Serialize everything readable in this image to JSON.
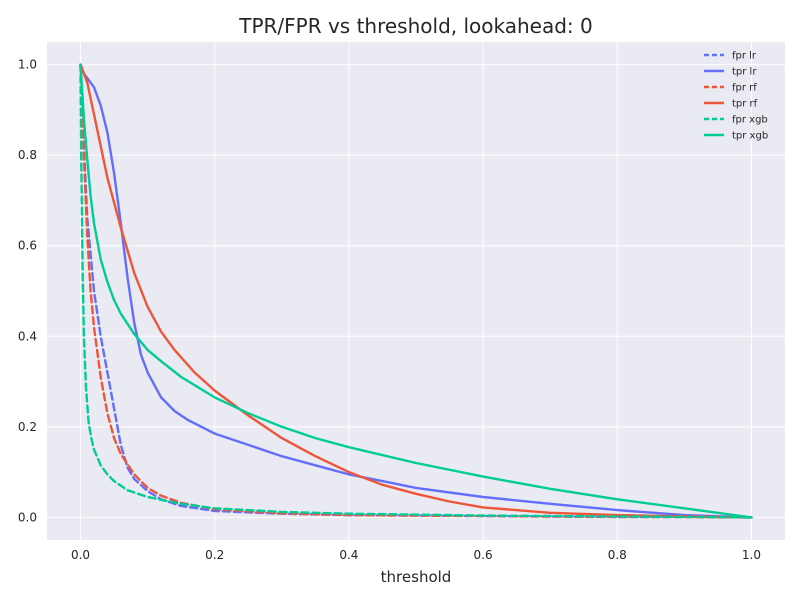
{
  "chart_data": {
    "type": "line",
    "title": "TPR/FPR vs threshold, lookahead: 0",
    "xlabel": "threshold",
    "ylabel": "",
    "xlim": [
      -0.05,
      1.05
    ],
    "ylim": [
      -0.05,
      1.05
    ],
    "grid": true,
    "legend_position": "top-right",
    "xticks": [
      {
        "value": 0.0,
        "label": "0.0"
      },
      {
        "value": 0.2,
        "label": "0.2"
      },
      {
        "value": 0.4,
        "label": "0.4"
      },
      {
        "value": 0.6,
        "label": "0.6"
      },
      {
        "value": 0.8,
        "label": "0.8"
      },
      {
        "value": 1.0,
        "label": "1.0"
      }
    ],
    "yticks": [
      {
        "value": 0.0,
        "label": "0.0"
      },
      {
        "value": 0.2,
        "label": "0.2"
      },
      {
        "value": 0.4,
        "label": "0.4"
      },
      {
        "value": 0.6,
        "label": "0.6"
      },
      {
        "value": 0.8,
        "label": "0.8"
      },
      {
        "value": 1.0,
        "label": "1.0"
      }
    ],
    "series": [
      {
        "name": "fpr lr",
        "color": "#636efa",
        "dash": "dashed",
        "x": [
          0,
          0.005,
          0.01,
          0.02,
          0.03,
          0.04,
          0.05,
          0.06,
          0.07,
          0.08,
          0.1,
          0.12,
          0.15,
          0.2,
          0.3,
          0.4,
          0.5,
          0.6,
          0.7,
          0.8,
          0.9,
          1.0
        ],
        "y": [
          1.0,
          0.82,
          0.66,
          0.5,
          0.4,
          0.32,
          0.24,
          0.16,
          0.11,
          0.085,
          0.058,
          0.04,
          0.025,
          0.014,
          0.008,
          0.005,
          0.004,
          0.003,
          0.002,
          0.001,
          0.001,
          0.0
        ]
      },
      {
        "name": "tpr lr",
        "color": "#636efa",
        "dash": "solid",
        "x": [
          0,
          0.005,
          0.01,
          0.02,
          0.03,
          0.04,
          0.05,
          0.06,
          0.07,
          0.08,
          0.09,
          0.1,
          0.12,
          0.14,
          0.16,
          0.2,
          0.25,
          0.3,
          0.35,
          0.4,
          0.45,
          0.5,
          0.6,
          0.7,
          0.8,
          0.9,
          1.0
        ],
        "y": [
          1.0,
          0.98,
          0.97,
          0.95,
          0.91,
          0.85,
          0.76,
          0.65,
          0.53,
          0.43,
          0.36,
          0.32,
          0.265,
          0.235,
          0.215,
          0.185,
          0.16,
          0.135,
          0.115,
          0.095,
          0.08,
          0.065,
          0.045,
          0.03,
          0.016,
          0.005,
          0.0
        ]
      },
      {
        "name": "fpr rf",
        "color": "#ef553b",
        "dash": "dashed",
        "x": [
          0,
          0.005,
          0.01,
          0.015,
          0.02,
          0.03,
          0.04,
          0.05,
          0.06,
          0.08,
          0.1,
          0.12,
          0.15,
          0.2,
          0.3,
          0.4,
          0.5,
          0.6,
          0.7,
          0.8,
          0.9,
          1.0
        ],
        "y": [
          1.0,
          0.8,
          0.62,
          0.5,
          0.42,
          0.31,
          0.23,
          0.175,
          0.14,
          0.095,
          0.065,
          0.048,
          0.032,
          0.018,
          0.009,
          0.005,
          0.004,
          0.003,
          0.002,
          0.001,
          0.001,
          0.0
        ]
      },
      {
        "name": "tpr rf",
        "color": "#ef553b",
        "dash": "solid",
        "x": [
          0,
          0.01,
          0.02,
          0.03,
          0.04,
          0.06,
          0.08,
          0.1,
          0.12,
          0.14,
          0.17,
          0.2,
          0.25,
          0.3,
          0.35,
          0.4,
          0.45,
          0.5,
          0.55,
          0.6,
          0.7,
          0.8,
          0.9,
          1.0
        ],
        "y": [
          1.0,
          0.96,
          0.89,
          0.82,
          0.75,
          0.64,
          0.54,
          0.465,
          0.41,
          0.37,
          0.32,
          0.28,
          0.225,
          0.175,
          0.135,
          0.1,
          0.072,
          0.052,
          0.035,
          0.022,
          0.01,
          0.005,
          0.002,
          0.0
        ]
      },
      {
        "name": "fpr xgb",
        "color": "#00cc96",
        "dash": "dashed",
        "x": [
          0,
          0.001,
          0.003,
          0.005,
          0.008,
          0.012,
          0.016,
          0.02,
          0.03,
          0.04,
          0.05,
          0.07,
          0.1,
          0.15,
          0.2,
          0.3,
          0.4,
          0.5,
          0.6,
          0.7,
          0.8,
          0.9,
          1.0
        ],
        "y": [
          1.0,
          0.8,
          0.55,
          0.4,
          0.29,
          0.21,
          0.175,
          0.15,
          0.115,
          0.095,
          0.08,
          0.06,
          0.045,
          0.03,
          0.02,
          0.012,
          0.008,
          0.006,
          0.004,
          0.003,
          0.002,
          0.001,
          0.0
        ]
      },
      {
        "name": "tpr xgb",
        "color": "#00cc96",
        "dash": "solid",
        "x": [
          0,
          0.005,
          0.01,
          0.015,
          0.02,
          0.03,
          0.04,
          0.05,
          0.06,
          0.08,
          0.1,
          0.12,
          0.15,
          0.2,
          0.25,
          0.3,
          0.35,
          0.4,
          0.5,
          0.6,
          0.7,
          0.8,
          0.9,
          1.0
        ],
        "y": [
          1.0,
          0.88,
          0.79,
          0.71,
          0.65,
          0.57,
          0.52,
          0.48,
          0.45,
          0.405,
          0.37,
          0.345,
          0.31,
          0.265,
          0.23,
          0.2,
          0.175,
          0.155,
          0.12,
          0.09,
          0.063,
          0.04,
          0.02,
          0.0
        ]
      }
    ]
  }
}
